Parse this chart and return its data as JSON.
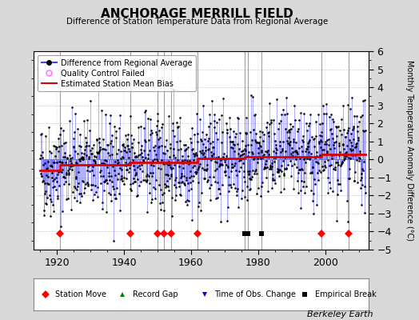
{
  "title": "ANCHORAGE MERRILL FIELD",
  "subtitle": "Difference of Station Temperature Data from Regional Average",
  "ylabel": "Monthly Temperature Anomaly Difference (°C)",
  "xlim": [
    1913,
    2013
  ],
  "ylim": [
    -5,
    6
  ],
  "yticks": [
    -5,
    -4,
    -3,
    -2,
    -1,
    0,
    1,
    2,
    3,
    4,
    5,
    6
  ],
  "xticks": [
    1920,
    1940,
    1960,
    1980,
    2000
  ],
  "bg_color": "#d8d8d8",
  "plot_bg_color": "#ffffff",
  "line_color": "#4444ff",
  "line_color_fill": "#aaaaff",
  "marker_color": "#000000",
  "mean_bias_color": "#dd0000",
  "station_move_years": [
    1921,
    1942,
    1950,
    1952,
    1954,
    1962,
    1999,
    2007
  ],
  "record_gap_years": [],
  "obs_change_years": [],
  "empirical_break_years": [
    1976,
    1977,
    1981
  ],
  "vertical_line_years": [
    1921,
    1942,
    1950,
    1952,
    1954,
    1962,
    1999,
    2007,
    1976,
    1977,
    1981
  ],
  "vertical_line_color": "#888888",
  "watermark": "Berkeley Earth",
  "seed": 42,
  "start_year": 1915,
  "end_year": 2012
}
